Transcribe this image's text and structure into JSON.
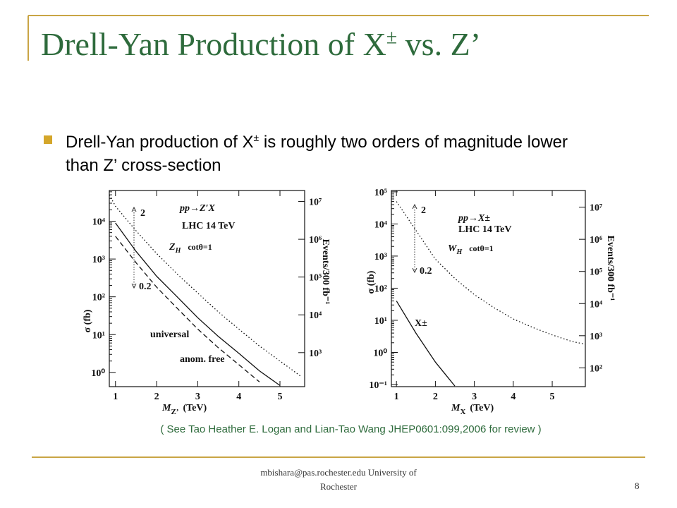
{
  "title": {
    "main": "Drell-Yan Production of X",
    "sup": "±",
    "rest": " vs. Z’"
  },
  "bullet": {
    "main": "Drell-Yan production of X",
    "sup": "±",
    "rest": " is roughly two orders of magnitude lower than Z’ cross-section"
  },
  "figures": [
    {
      "type": "line",
      "log_y": true,
      "xlim": [
        0.85,
        5.6
      ],
      "ylim": [
        0.42,
        65000
      ],
      "y2lim": [
        126,
        19500000
      ],
      "xticks": [
        1,
        2,
        3,
        4,
        5
      ],
      "yticks": [
        {
          "value": 1,
          "label": "10⁰"
        },
        {
          "value": 10,
          "label": "10¹"
        },
        {
          "value": 100,
          "label": "10²"
        },
        {
          "value": 1000,
          "label": "10³"
        },
        {
          "value": 10000,
          "label": "10⁴"
        }
      ],
      "y2ticks": [
        {
          "value": 1000,
          "label": "10³"
        },
        {
          "value": 10000,
          "label": "10⁴"
        },
        {
          "value": 100000,
          "label": "10⁵"
        },
        {
          "value": 1000000,
          "label": "10⁶"
        },
        {
          "value": 10000000,
          "label": "10⁷"
        }
      ],
      "xlabel": "M",
      "xlabel_sub": "Z’",
      "xlabel_unit": "(TeV)",
      "ylabel": "σ (fb)",
      "y2label": "Events/300 fb⁻¹",
      "process": "pp→Z′X",
      "energy": "LHC 14 TeV",
      "boson": "Z",
      "boson_sub": "H",
      "coupling": "cotθ=1",
      "arrow_top": "2",
      "arrow_bottom": "0.2",
      "series": [
        {
          "name": "universal",
          "style": "solid",
          "x": [
            1,
            1.5,
            2,
            2.5,
            3,
            3.5,
            4,
            4.5,
            5
          ],
          "values": [
            9000,
            1600,
            350,
            100,
            28,
            9,
            3.2,
            1.1,
            0.45
          ]
        },
        {
          "name": "anom. free",
          "style": "dashed",
          "x": [
            1,
            1.5,
            2,
            2.5,
            3,
            3.5,
            4,
            4.5
          ],
          "values": [
            4000,
            800,
            180,
            50,
            14,
            4.5,
            1.6,
            0.56
          ]
        },
        {
          "style": "dotted",
          "x": [
            0.85,
            1,
            1.5,
            2,
            2.5,
            3,
            3.5,
            4,
            4.5,
            5,
            5.5
          ],
          "values": [
            50000,
            25000,
            5600,
            1400,
            400,
            126,
            40,
            14,
            5,
            2,
            0.8
          ]
        }
      ]
    },
    {
      "type": "line",
      "log_y": true,
      "xlim": [
        0.87,
        5.85
      ],
      "ylim": [
        0.086,
        110000
      ],
      "y2lim": [
        26,
        33000000
      ],
      "xticks": [
        1,
        2,
        3,
        4,
        5
      ],
      "yticks": [
        {
          "value": 0.1,
          "label": "10⁻¹"
        },
        {
          "value": 1,
          "label": "10⁰"
        },
        {
          "value": 10,
          "label": "10¹"
        },
        {
          "value": 100,
          "label": "10²"
        },
        {
          "value": 1000,
          "label": "10³"
        },
        {
          "value": 10000,
          "label": "10⁴"
        },
        {
          "value": 100000,
          "label": "10⁵"
        }
      ],
      "y2ticks": [
        {
          "value": 100,
          "label": "10²"
        },
        {
          "value": 1000,
          "label": "10³"
        },
        {
          "value": 10000,
          "label": "10⁴"
        },
        {
          "value": 100000,
          "label": "10⁵"
        },
        {
          "value": 1000000,
          "label": "10⁶"
        },
        {
          "value": 10000000,
          "label": "10⁷"
        }
      ],
      "xlabel": "M",
      "xlabel_sub": "X",
      "xlabel_unit": "(TeV)",
      "ylabel": "σ (fb)",
      "y2label": "Events/300 fb⁻¹",
      "process": "pp→X±",
      "energy": "LHC 14 TeV",
      "boson": "W",
      "boson_sub": "H",
      "coupling": "cotθ=1",
      "arrow_top": "2",
      "arrow_bottom": "0.2",
      "series": [
        {
          "name": "X±",
          "style": "solid",
          "x": [
            1,
            1.5,
            2,
            2.5
          ],
          "values": [
            40,
            4,
            0.5,
            0.09
          ]
        },
        {
          "style": "dotted",
          "x": [
            1,
            1.5,
            2,
            2.5,
            3,
            3.5,
            4,
            4.5,
            5,
            5.5,
            5.85
          ],
          "values": [
            50000,
            6300,
            800,
            200,
            63,
            25,
            11,
            6,
            3.5,
            2.2,
            1.8
          ]
        }
      ]
    }
  ],
  "citation": "( See Tao Heather E. Logan and Lian-Tao Wang JHEP0601:099,2006 for review )",
  "footer": {
    "line1": "mbishara@pas.rochester.edu University of",
    "line2": "Rochester",
    "page": "8"
  }
}
